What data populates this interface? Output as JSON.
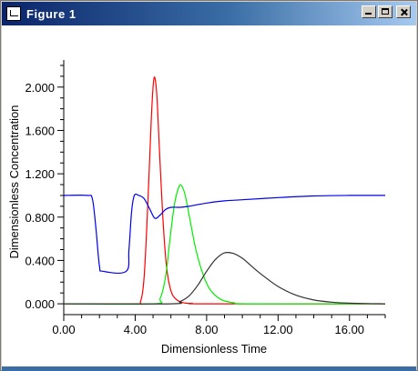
{
  "window": {
    "title": "Figure 1",
    "title_icon": "figure-app-icon",
    "buttons": [
      "minimize-icon",
      "maximize-icon",
      "close-icon"
    ]
  },
  "chart_data": {
    "type": "line",
    "title": "",
    "xlabel": "Dimensionless Time",
    "ylabel": "Dimensionless Concentration",
    "xlim": [
      0,
      18
    ],
    "ylim": [
      -0.1,
      2.25
    ],
    "xticks": [
      "0.00",
      "4.00",
      "8.00",
      "12.00",
      "16.00"
    ],
    "xtick_values": [
      0,
      4,
      8,
      12,
      16
    ],
    "yticks": [
      "0.000",
      "0.400",
      "0.800",
      "1.200",
      "1.600",
      "2.000"
    ],
    "ytick_values": [
      0,
      0.4,
      0.8,
      1.2,
      1.6,
      2.0
    ],
    "grid": false,
    "series": [
      {
        "color": "#ff0000",
        "x": [
          0,
          4.0,
          4.3,
          4.5,
          4.7,
          4.9,
          5.05,
          5.2,
          5.35,
          5.55,
          5.75,
          6.0,
          6.3,
          6.7,
          7.2,
          8.0,
          18
        ],
        "y": [
          0,
          0,
          0.02,
          0.25,
          0.9,
          1.7,
          2.08,
          1.95,
          1.45,
          0.8,
          0.35,
          0.12,
          0.04,
          0.01,
          0.003,
          0,
          0
        ]
      },
      {
        "color": "#00ee00",
        "x": [
          0,
          5.0,
          5.4,
          5.7,
          5.95,
          6.2,
          6.45,
          6.6,
          6.8,
          7.1,
          7.4,
          7.8,
          8.2,
          8.8,
          9.5,
          10.5,
          18
        ],
        "y": [
          0,
          0,
          0.05,
          0.25,
          0.6,
          0.92,
          1.08,
          1.09,
          1.0,
          0.75,
          0.5,
          0.27,
          0.13,
          0.04,
          0.01,
          0,
          0
        ]
      },
      {
        "color": "#333333",
        "x": [
          0,
          6.0,
          6.5,
          7.0,
          7.5,
          8.0,
          8.5,
          9.0,
          9.5,
          10.0,
          10.5,
          11.0,
          12.0,
          13.0,
          14.0,
          15.0,
          16.0,
          17.0,
          18.0
        ],
        "y": [
          0,
          0,
          0.02,
          0.07,
          0.17,
          0.3,
          0.41,
          0.47,
          0.465,
          0.42,
          0.35,
          0.28,
          0.16,
          0.08,
          0.035,
          0.015,
          0.006,
          0.002,
          0
        ]
      },
      {
        "color": "#0000ee",
        "x": [
          0,
          1.3,
          1.6,
          1.8,
          2.0,
          2.2,
          3.5,
          3.65,
          3.8,
          3.95,
          4.2,
          4.5,
          4.8,
          5.1,
          5.4,
          5.7,
          6.0,
          6.5,
          7.0,
          8.0,
          9.0,
          10.0,
          12.0,
          14.0,
          16.0,
          18.0
        ],
        "y": [
          1.0,
          1.0,
          0.97,
          0.7,
          0.35,
          0.3,
          0.3,
          0.5,
          0.85,
          1.0,
          1.0,
          0.97,
          0.88,
          0.79,
          0.82,
          0.87,
          0.89,
          0.89,
          0.9,
          0.93,
          0.95,
          0.96,
          0.98,
          0.995,
          1.0,
          1.0
        ]
      }
    ]
  }
}
